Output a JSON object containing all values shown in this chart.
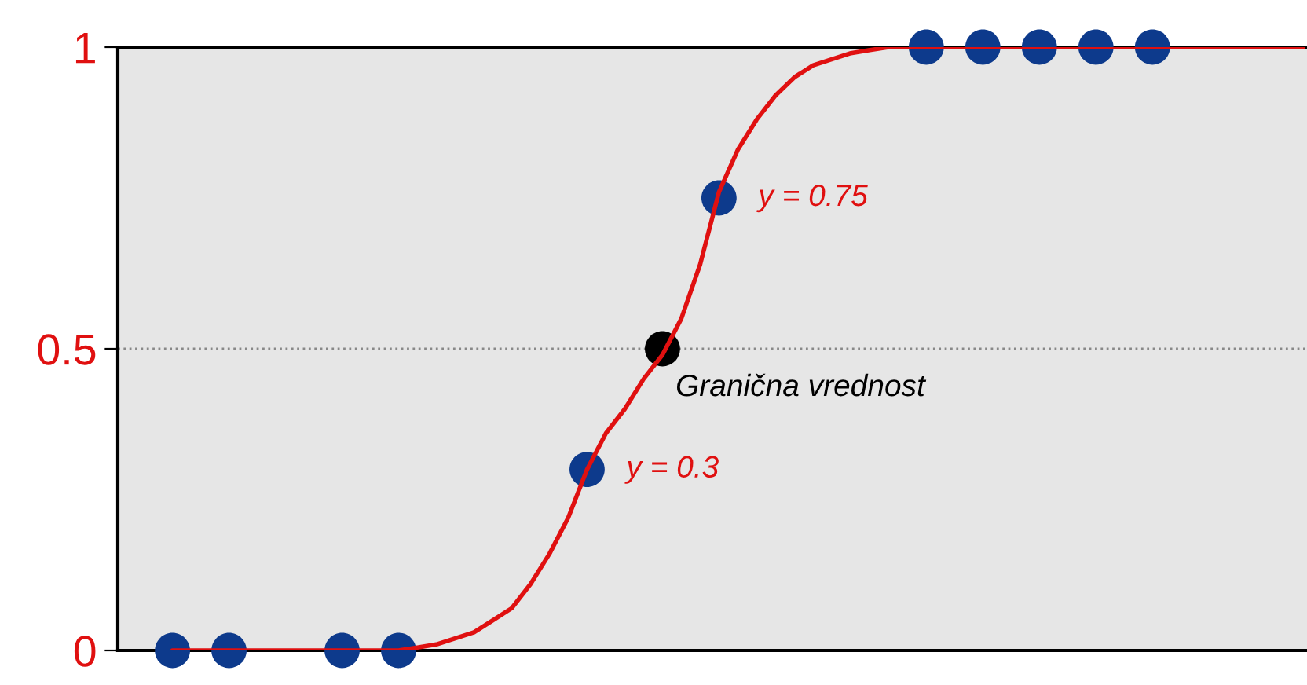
{
  "chart_data": {
    "type": "scatter",
    "categories": [
      null,
      null,
      null,
      null,
      null,
      null,
      null,
      null,
      null,
      null,
      null,
      null,
      null,
      null,
      null,
      null,
      null,
      null,
      null,
      null,
      null,
      null,
      null,
      null,
      null,
      null,
      null,
      null,
      null,
      null,
      null,
      null,
      null,
      null,
      null,
      null,
      null,
      null,
      null,
      null,
      null,
      null,
      null,
      null,
      null,
      null,
      null,
      null,
      null,
      null,
      null,
      null,
      null,
      null,
      null,
      null,
      null,
      null,
      null,
      null,
      null
    ],
    "series": [
      {
        "color": "#000000",
        "values": [
          null,
          null,
          null,
          null,
          null,
          null,
          null,
          null,
          null,
          null,
          null,
          null,
          null,
          null,
          null,
          null,
          null,
          null,
          null,
          null,
          null,
          null,
          null,
          null,
          null,
          null,
          0.5,
          null,
          null,
          null,
          null,
          null,
          null,
          null,
          null,
          null,
          null,
          null,
          null,
          null,
          null,
          null,
          null,
          null,
          null,
          null,
          null,
          null,
          null,
          null,
          null,
          null,
          null,
          null,
          null,
          null,
          null,
          null,
          null,
          null,
          null
        ],
        "value_labels": [
          null,
          null,
          null,
          null,
          null,
          null,
          null,
          null,
          null,
          null,
          null,
          null,
          null,
          null,
          null,
          null,
          null,
          null,
          null,
          null,
          null,
          null,
          null,
          null,
          null,
          null,
          "Granična vrednost",
          null,
          null,
          null,
          null,
          null,
          null,
          null,
          null,
          null,
          null,
          null,
          null,
          null,
          null,
          null,
          null,
          null,
          null,
          null,
          null,
          null,
          null,
          null,
          null,
          null,
          null,
          null,
          null,
          null,
          null,
          null,
          null,
          null,
          null
        ]
      },
      {
        "type": "line",
        "marker": "none",
        "color": "#e01010",
        "values": [
          0,
          0,
          0,
          0,
          0,
          0,
          0,
          0,
          0,
          0,
          0,
          0,
          0,
          0.005,
          0.01,
          0.02,
          0.03,
          0.05,
          0.07,
          0.11,
          0.16,
          0.22,
          0.3,
          0.36,
          0.4,
          0.45,
          0.49,
          0.55,
          0.64,
          0.76,
          0.83,
          0.88,
          0.92,
          0.95,
          0.97,
          0.98,
          0.99,
          0.995,
          1,
          1,
          1,
          1,
          1,
          1,
          1,
          1,
          1,
          1,
          1,
          1,
          1,
          1,
          1,
          1,
          1,
          1,
          1,
          1,
          1,
          1,
          1
        ]
      },
      {
        "color": "#0d3a8c",
        "values": [
          0,
          null,
          null,
          0,
          null,
          null,
          null,
          null,
          null,
          0,
          null,
          null,
          0,
          null,
          null,
          null,
          null,
          null,
          null,
          null,
          null,
          null,
          0.3,
          null,
          null,
          null,
          null,
          null,
          null,
          0.75,
          null,
          null,
          null,
          null,
          null,
          null,
          null,
          null,
          null,
          null,
          1,
          null,
          null,
          1,
          null,
          null,
          1,
          null,
          null,
          1,
          null,
          null,
          1,
          null,
          null,
          null,
          null,
          null,
          null,
          null,
          null
        ],
        "value_labels": [
          null,
          null,
          null,
          null,
          null,
          null,
          null,
          null,
          null,
          null,
          null,
          null,
          null,
          null,
          null,
          null,
          null,
          null,
          null,
          null,
          null,
          null,
          "y = 0.3",
          null,
          null,
          null,
          null,
          null,
          null,
          "y = 0.75",
          null,
          null,
          null,
          null,
          null,
          null,
          null,
          null,
          null,
          null,
          null,
          null,
          null,
          null,
          null,
          null,
          null,
          null,
          null,
          null,
          null,
          null,
          null,
          null,
          null,
          null,
          null,
          null,
          null,
          null,
          null
        ]
      }
    ],
    "ylim": [
      0,
      1
    ],
    "yticks": [
      0,
      0.5,
      1
    ],
    "tick_labels": "y",
    "grid": false,
    "legend": false,
    "marker": "circle",
    "ref_lines": [
      {
        "axis": "y",
        "value": 0.5,
        "color": "#888888",
        "line_style": "dotted"
      }
    ]
  }
}
